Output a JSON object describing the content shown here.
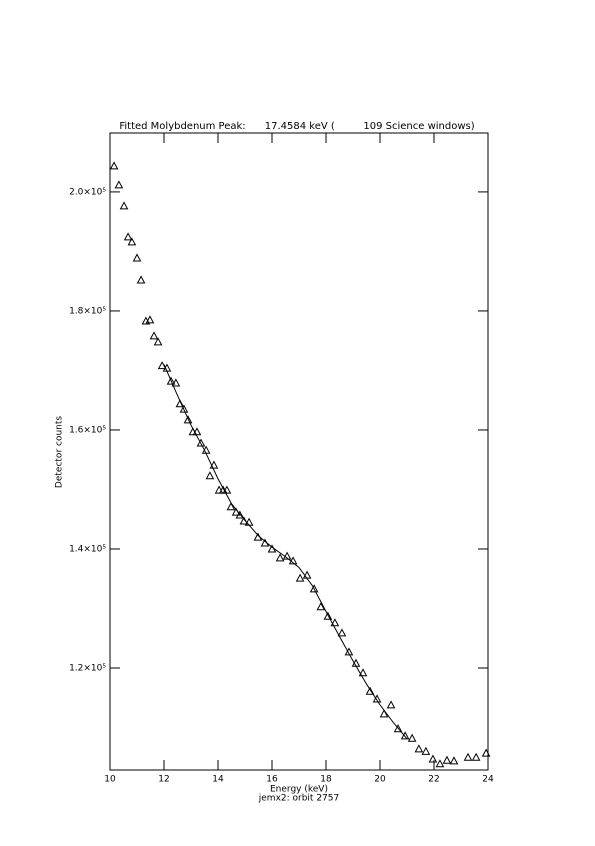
{
  "chart_data": {
    "type": "scatter",
    "title": "Fitted Molybdenum Peak:      17.4584 keV (         109 Science windows)",
    "x_label": "Energy (keV)",
    "note": "jemx2: orbit 2757",
    "y_label": "Detector counts",
    "xlim": [
      10,
      24
    ],
    "ylim": [
      102860,
      209900
    ],
    "xticks": [
      10,
      12,
      14,
      16,
      18,
      20,
      22,
      24
    ],
    "yticks": [
      {
        "value": 120000,
        "label": "1.2×10⁵"
      },
      {
        "value": 140000,
        "label": "1.4×10⁵"
      },
      {
        "value": 160000,
        "label": "1.6×10⁵"
      },
      {
        "value": 180000,
        "label": "1.8×10⁵"
      },
      {
        "value": 200000,
        "label": "2.0×10⁵"
      }
    ],
    "series": [
      {
        "style": "triangles",
        "color": "#000000",
        "x": [
          10.15,
          10.33,
          10.52,
          10.67,
          10.81,
          11.0,
          11.15,
          11.33,
          11.48,
          11.63,
          11.78,
          11.93,
          12.11,
          12.26,
          12.44,
          12.59,
          12.74,
          12.89,
          13.07,
          13.22,
          13.37,
          13.56,
          13.7,
          13.85,
          14.04,
          14.19,
          14.33,
          14.48,
          14.67,
          14.81,
          14.96,
          15.15,
          15.48,
          15.74,
          16.0,
          16.3,
          16.56,
          16.78,
          17.04,
          17.3,
          17.56,
          17.81,
          18.07,
          18.33,
          18.59,
          18.85,
          19.11,
          19.37,
          19.63,
          19.89,
          20.15,
          20.41,
          20.67,
          20.93,
          21.19,
          21.44,
          21.7,
          21.96,
          22.22,
          22.48,
          22.74,
          23.26,
          23.56,
          23.93
        ],
        "values": [
          204370,
          201180,
          197650,
          192440,
          191600,
          188900,
          185200,
          178300,
          178500,
          175800,
          174800,
          170800,
          170400,
          168200,
          167900,
          164400,
          163500,
          161700,
          159700,
          159700,
          157800,
          156600,
          152300,
          154100,
          149900,
          149900,
          149900,
          147100,
          146200,
          145700,
          144700,
          144500,
          142000,
          141000,
          140000,
          138500,
          138800,
          138000,
          135100,
          135600,
          133300,
          130300,
          128700,
          127600,
          125900,
          122700,
          120800,
          119200,
          116100,
          114800,
          112300,
          113800,
          109800,
          108600,
          108200,
          106400,
          106000,
          104700,
          103900,
          104500,
          104400,
          105000,
          105000,
          105700
        ]
      },
      {
        "style": "line",
        "color": "#000000",
        "x": [
          12.0,
          12.5,
          13.0,
          13.5,
          14.0,
          14.5,
          15.0,
          15.5,
          16.0,
          16.5,
          17.0,
          17.5,
          18.0,
          18.5,
          19.0,
          19.5,
          20.0,
          20.5,
          21.0
        ],
        "values": [
          171000,
          165800,
          160800,
          156600,
          151800,
          147600,
          144800,
          142200,
          140300,
          138700,
          136900,
          133800,
          129500,
          125300,
          121200,
          117300,
          113800,
          110800,
          108100
        ]
      }
    ]
  }
}
